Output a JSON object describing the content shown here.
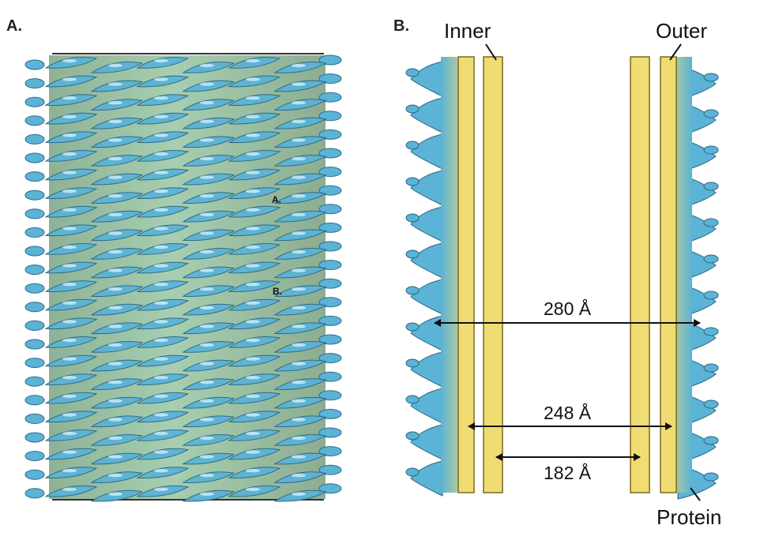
{
  "panels": {
    "a": {
      "letter": "A.",
      "markers": [
        "A.",
        "B."
      ]
    },
    "b": {
      "letter": "B."
    }
  },
  "labels": {
    "inner": "Inner",
    "outer": "Outer",
    "protein": "Protein"
  },
  "measurements": [
    {
      "value": "280 Å"
    },
    {
      "value": "248 Å"
    },
    {
      "value": "182 Å"
    }
  ],
  "colors": {
    "protein": "#5bb3d6",
    "membrane": "#f0dc73",
    "arrow": "#111111"
  }
}
